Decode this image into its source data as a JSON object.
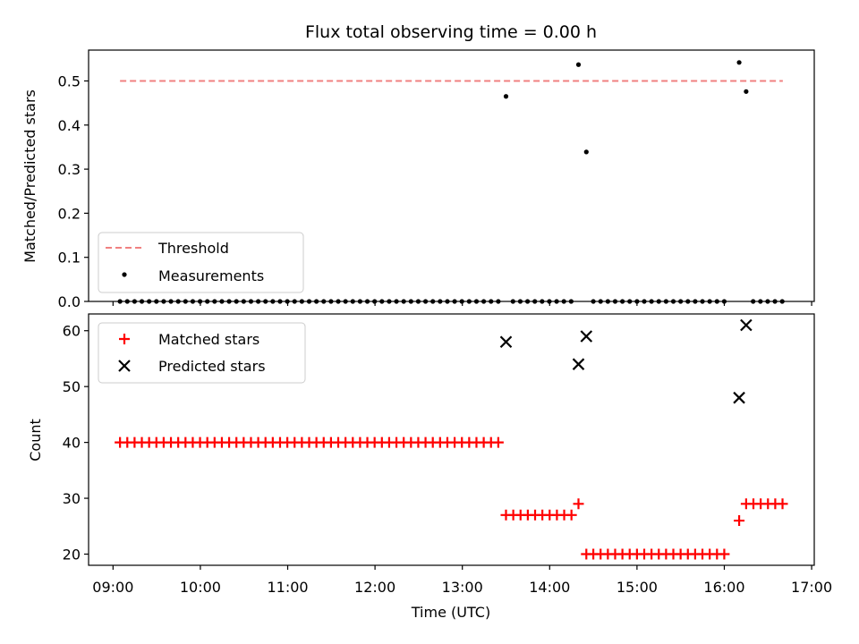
{
  "chart_data": {
    "type": "scatter",
    "title": "Flux total observing time = 0.00 h",
    "xlabel": "Time (UTC)",
    "x_tick_labels": [
      "09:00",
      "10:00",
      "11:00",
      "12:00",
      "13:00",
      "14:00",
      "15:00",
      "16:00",
      "17:00"
    ],
    "x_range_hours": [
      8.72,
      17.03
    ],
    "top_panel": {
      "ylabel": "Matched/Predicted stars",
      "ylim": [
        0,
        0.57
      ],
      "y_ticks": [
        0.0,
        0.1,
        0.2,
        0.3,
        0.4,
        0.5
      ],
      "y_tick_labels": [
        "0.0",
        "0.1",
        "0.2",
        "0.3",
        "0.4",
        "0.5"
      ],
      "legend_placement": "lower-left",
      "threshold": {
        "name": "Threshold",
        "value": 0.5,
        "x_start": 9.08,
        "x_end": 16.67,
        "color": "#f08080"
      },
      "measurements_name": "Measurements",
      "measurements_color": "#000000",
      "measurements_nonzero": [
        {
          "x": 13.5,
          "y": 0.465
        },
        {
          "x": 14.33,
          "y": 0.537
        },
        {
          "x": 14.42,
          "y": 0.339
        },
        {
          "x": 16.17,
          "y": 0.542
        },
        {
          "x": 16.25,
          "y": 0.476
        }
      ],
      "measurements_zero_segments": [
        {
          "start": 9.08,
          "end": 13.42,
          "step": 0.0833,
          "y": 0
        },
        {
          "start": 13.58,
          "end": 14.25,
          "step": 0.0833,
          "y": 0
        },
        {
          "start": 14.5,
          "end": 16.08,
          "step": 0.0833,
          "y": 0
        },
        {
          "start": 16.33,
          "end": 16.67,
          "step": 0.0833,
          "y": 0
        }
      ]
    },
    "bottom_panel": {
      "ylabel": "Count",
      "ylim": [
        18,
        63
      ],
      "y_ticks": [
        20,
        30,
        40,
        50,
        60
      ],
      "y_tick_labels": [
        "20",
        "30",
        "40",
        "50",
        "60"
      ],
      "legend_placement": "upper-left",
      "matched_name": "Matched stars",
      "matched_color": "#ff0000",
      "predicted_name": "Predicted stars",
      "predicted_color": "#000000",
      "matched_segments": [
        {
          "start": 9.08,
          "end": 13.42,
          "step": 0.0833,
          "y": 40
        },
        {
          "start": 13.5,
          "end": 14.25,
          "step": 0.0833,
          "y": 27
        },
        {
          "start": 14.5,
          "end": 16.08,
          "step": 0.0833,
          "y": 20
        },
        {
          "start": 16.25,
          "end": 16.67,
          "step": 0.0833,
          "y": 29
        }
      ],
      "matched_extra": [
        {
          "x": 14.33,
          "y": 29
        },
        {
          "x": 14.42,
          "y": 20
        },
        {
          "x": 16.17,
          "y": 26
        }
      ],
      "predicted_points": [
        {
          "x": 13.5,
          "y": 58
        },
        {
          "x": 14.33,
          "y": 54
        },
        {
          "x": 14.42,
          "y": 59
        },
        {
          "x": 16.17,
          "y": 48
        },
        {
          "x": 16.25,
          "y": 61
        }
      ]
    }
  }
}
